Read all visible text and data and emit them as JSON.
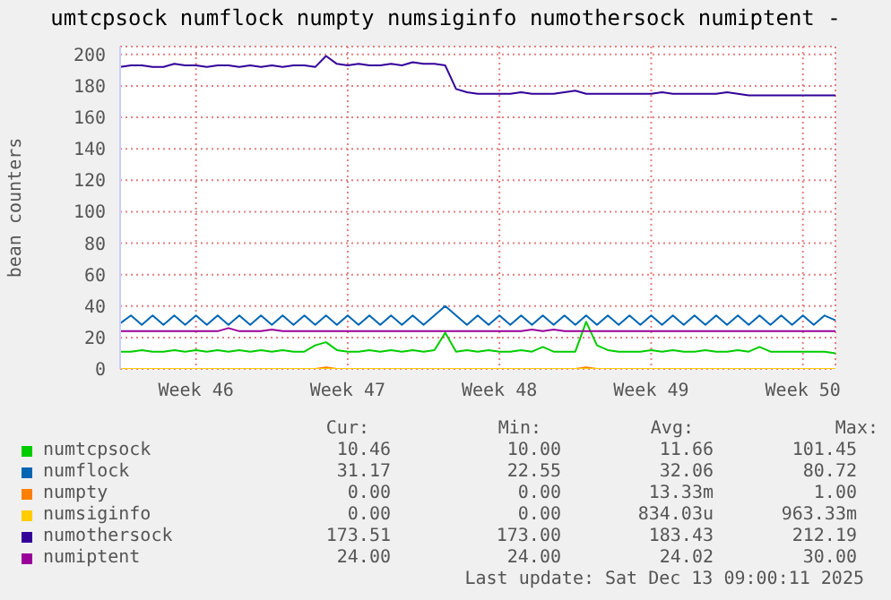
{
  "chart_data": {
    "type": "line",
    "title": "umtcpsock numflock numpty numsiginfo numothersock numiptent -",
    "ylabel": "bean counters",
    "categories": [
      null,
      null,
      null,
      null,
      null,
      null,
      null,
      "Week 46",
      null,
      null,
      null,
      null,
      null,
      null,
      null,
      null,
      null,
      null,
      null,
      null,
      null,
      "Week 47",
      null,
      null,
      null,
      null,
      null,
      null,
      null,
      null,
      null,
      null,
      null,
      null,
      null,
      "Week 48",
      null,
      null,
      null,
      null,
      null,
      null,
      null,
      null,
      null,
      null,
      null,
      null,
      null,
      "Week 49",
      null,
      null,
      null,
      null,
      null,
      null,
      null,
      null,
      null,
      null,
      null,
      null,
      null,
      "Week 50",
      null,
      null,
      null
    ],
    "ylim": [
      0,
      205
    ],
    "yticks": [
      0,
      20,
      40,
      60,
      80,
      100,
      120,
      140,
      160,
      180,
      200
    ],
    "grid": true,
    "legend": "bottom",
    "series": [
      {
        "name": "numtcpsock",
        "color": "#00cc00",
        "values": [
          11,
          11,
          12,
          11,
          11,
          12,
          11,
          12,
          11,
          12,
          11,
          12,
          11,
          12,
          11,
          12,
          11,
          11,
          15,
          17,
          12,
          11,
          11,
          12,
          11,
          12,
          11,
          12,
          11,
          12,
          23,
          11,
          12,
          11,
          12,
          11,
          11,
          12,
          11,
          14,
          11,
          11,
          11,
          30,
          15,
          12,
          11,
          11,
          11,
          12,
          11,
          12,
          11,
          11,
          12,
          11,
          11,
          12,
          11,
          14,
          11,
          11,
          11,
          11,
          11,
          11,
          10
        ]
      },
      {
        "name": "numflock",
        "color": "#0066b3",
        "values": [
          29,
          34,
          28,
          34,
          28,
          34,
          28,
          34,
          28,
          34,
          28,
          34,
          28,
          34,
          28,
          34,
          28,
          34,
          28,
          34,
          28,
          34,
          28,
          34,
          28,
          34,
          28,
          34,
          28,
          34,
          40,
          34,
          28,
          34,
          28,
          34,
          28,
          34,
          28,
          34,
          28,
          34,
          28,
          34,
          28,
          34,
          28,
          34,
          28,
          34,
          28,
          34,
          28,
          34,
          28,
          34,
          28,
          34,
          28,
          34,
          28,
          34,
          28,
          34,
          28,
          34,
          31
        ]
      },
      {
        "name": "numpty",
        "color": "#ff8000",
        "values": [
          null,
          null,
          null,
          null,
          null,
          null,
          null,
          null,
          null,
          null,
          null,
          null,
          null,
          null,
          null,
          null,
          null,
          null,
          0,
          1,
          0,
          null,
          null,
          null,
          null,
          null,
          null,
          null,
          null,
          null,
          null,
          null,
          null,
          null,
          null,
          null,
          null,
          null,
          null,
          null,
          null,
          null,
          0,
          1,
          0,
          null,
          null,
          null,
          null,
          null,
          null,
          null,
          null,
          null,
          null,
          null,
          null,
          null,
          null,
          null,
          null,
          null,
          null,
          null,
          null,
          null,
          null
        ]
      },
      {
        "name": "numsiginfo",
        "color": "#ffcc00",
        "values": [
          0,
          0,
          0,
          0,
          0,
          0,
          0,
          0,
          0,
          0,
          0,
          0,
          0,
          0,
          0,
          0,
          0,
          0,
          0,
          0,
          0,
          0,
          0,
          0,
          0,
          0,
          0,
          0,
          0,
          0,
          0,
          0,
          0,
          0,
          0,
          0,
          0,
          0,
          0,
          0,
          0,
          0,
          0,
          0,
          0,
          0,
          0,
          0,
          0,
          0,
          0,
          0,
          0,
          0,
          0,
          0,
          0,
          0,
          0,
          0,
          0,
          0,
          0,
          0,
          0,
          0,
          0
        ]
      },
      {
        "name": "numothersock",
        "color": "#330099",
        "values": [
          192,
          193,
          193,
          192,
          192,
          194,
          193,
          193,
          192,
          193,
          193,
          192,
          193,
          192,
          193,
          192,
          193,
          193,
          192,
          199,
          194,
          193,
          194,
          193,
          193,
          194,
          193,
          195,
          194,
          194,
          193,
          178,
          176,
          175,
          175,
          175,
          175,
          176,
          175,
          175,
          175,
          176,
          177,
          175,
          175,
          175,
          175,
          175,
          175,
          175,
          176,
          175,
          175,
          175,
          175,
          175,
          176,
          175,
          174,
          174,
          174,
          174,
          174,
          174,
          174,
          174,
          174
        ]
      },
      {
        "name": "numiptent",
        "color": "#990099",
        "values": [
          24,
          24,
          24,
          24,
          24,
          24,
          24,
          24,
          24,
          24,
          26,
          24,
          24,
          24,
          25,
          24,
          24,
          24,
          24,
          24,
          24,
          24,
          24,
          24,
          24,
          24,
          24,
          24,
          24,
          24,
          24,
          24,
          24,
          24,
          24,
          24,
          24,
          24,
          25,
          24,
          25,
          24,
          24,
          24,
          24,
          24,
          24,
          24,
          24,
          24,
          24,
          24,
          24,
          24,
          24,
          24,
          24,
          24,
          24,
          24,
          24,
          24,
          24,
          24,
          24,
          24,
          24
        ]
      }
    ],
    "annotations": [
      "Cur:",
      "Min:",
      "Avg:",
      "Max:",
      "10.46",
      "10.00",
      "11.66",
      "101.45",
      "31.17",
      "22.55",
      "32.06",
      "80.72",
      "0.00",
      "0.00",
      "13.33m",
      "1.00",
      "0.00",
      "0.00",
      "834.03u",
      "963.33m",
      "173.51",
      "173.00",
      "183.43",
      "212.19",
      "24.00",
      "24.00",
      "24.02",
      "30.00",
      "Last update: Sat Dec 13 09:00:11 2025"
    ]
  }
}
